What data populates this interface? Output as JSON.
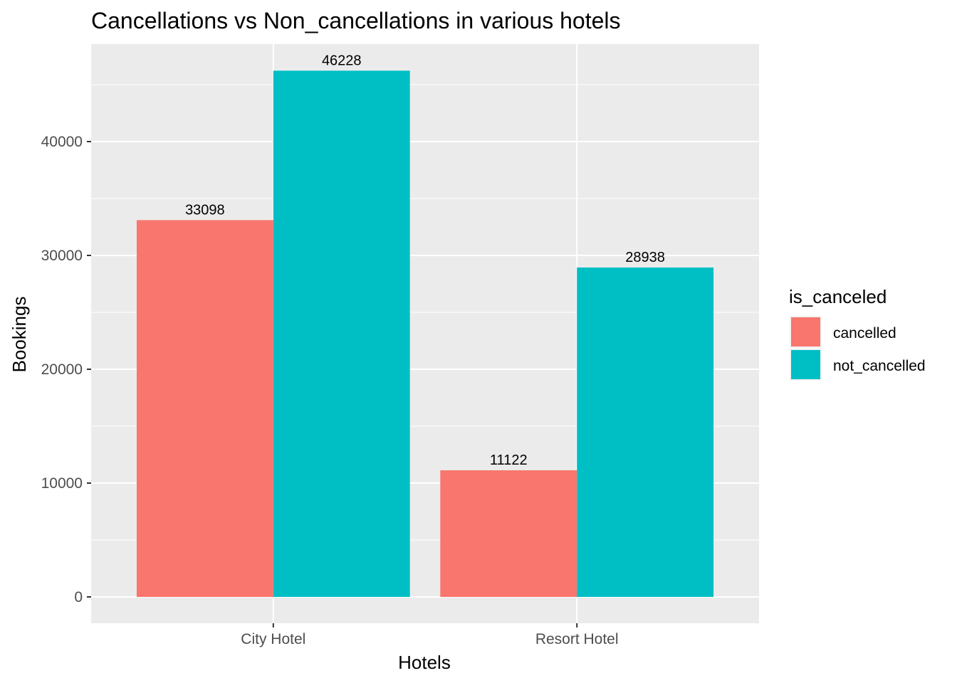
{
  "chart_data": {
    "type": "bar",
    "title": "Cancellations vs Non_cancellations in various hotels",
    "xlabel": "Hotels",
    "ylabel": "Bookings",
    "categories": [
      "City Hotel",
      "Resort Hotel"
    ],
    "series": [
      {
        "name": "cancelled",
        "color": "#F8766D",
        "values": [
          33098,
          11122
        ]
      },
      {
        "name": "not_cancelled",
        "color": "#00BFC4",
        "values": [
          46228,
          28938
        ]
      }
    ],
    "ylim": [
      0,
      50000
    ],
    "yticks": [
      0,
      10000,
      20000,
      30000,
      40000
    ],
    "data_labels": true,
    "grid": true,
    "legend": {
      "title": "is_canceled",
      "position": "right"
    }
  }
}
